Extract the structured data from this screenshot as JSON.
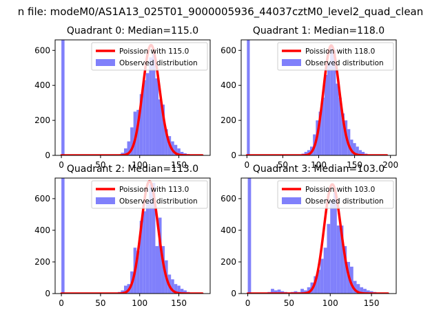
{
  "figure": {
    "suptitle": "n file: modeM0/AS1A13_025T01_9000005936_44037cztM0_level2_quad_clean"
  },
  "colors": {
    "hist": "#8080fb",
    "poisson": "#ff0000",
    "axis": "#000000",
    "background": "#ffffff"
  },
  "chart_data": [
    {
      "type": "bar",
      "title": "Quadrant 0: Median=115.0",
      "xlim": [
        -8,
        190
      ],
      "ylim": [
        0,
        660
      ],
      "xticks": [
        0,
        50,
        100,
        150
      ],
      "yticks": [
        0,
        200,
        400,
        600
      ],
      "grid": false,
      "legend_position": "top-right",
      "series": [
        {
          "name": "Observed distribution",
          "kind": "histogram",
          "bin_width": 4,
          "bins": [
            [
              0,
              660
            ],
            [
              72,
              5
            ],
            [
              76,
              15
            ],
            [
              80,
              40
            ],
            [
              84,
              80
            ],
            [
              88,
              160
            ],
            [
              92,
              250
            ],
            [
              96,
              260
            ],
            [
              100,
              350
            ],
            [
              104,
              430
            ],
            [
              108,
              470
            ],
            [
              112,
              560
            ],
            [
              116,
              580
            ],
            [
              120,
              440
            ],
            [
              124,
              320
            ],
            [
              128,
              290
            ],
            [
              132,
              150
            ],
            [
              136,
              110
            ],
            [
              140,
              80
            ],
            [
              144,
              60
            ],
            [
              148,
              40
            ],
            [
              152,
              20
            ],
            [
              156,
              12
            ],
            [
              160,
              8
            ],
            [
              164,
              4
            ],
            [
              168,
              2
            ],
            [
              172,
              1
            ]
          ]
        },
        {
          "name": "Poission with 115.0",
          "kind": "line",
          "mean": 115.0,
          "peak": 630,
          "x_range": [
            0,
            180
          ]
        }
      ]
    },
    {
      "type": "bar",
      "title": "Quadrant 1: Median=118.0",
      "xlim": [
        -8,
        208
      ],
      "ylim": [
        0,
        660
      ],
      "xticks": [
        0,
        50,
        100,
        150,
        200
      ],
      "yticks": [
        0,
        200,
        400,
        600
      ],
      "grid": false,
      "legend_position": "top-right",
      "series": [
        {
          "name": "Observed distribution",
          "kind": "histogram",
          "bin_width": 4,
          "bins": [
            [
              0,
              660
            ],
            [
              76,
              10
            ],
            [
              80,
              20
            ],
            [
              84,
              30
            ],
            [
              88,
              50
            ],
            [
              92,
              120
            ],
            [
              96,
              200
            ],
            [
              100,
              250
            ],
            [
              104,
              330
            ],
            [
              108,
              460
            ],
            [
              112,
              530
            ],
            [
              116,
              620
            ],
            [
              120,
              600
            ],
            [
              124,
              410
            ],
            [
              128,
              330
            ],
            [
              132,
              240
            ],
            [
              136,
              200
            ],
            [
              140,
              150
            ],
            [
              144,
              90
            ],
            [
              148,
              70
            ],
            [
              152,
              50
            ],
            [
              156,
              30
            ],
            [
              160,
              20
            ],
            [
              164,
              10
            ],
            [
              168,
              6
            ],
            [
              172,
              3
            ],
            [
              176,
              2
            ]
          ]
        },
        {
          "name": "Poission with 118.0",
          "kind": "line",
          "mean": 118.0,
          "peak": 628,
          "x_range": [
            0,
            195
          ]
        }
      ]
    },
    {
      "type": "bar",
      "title": "Quadrant 2: Median=113.0",
      "xlim": [
        -8,
        190
      ],
      "ylim": [
        0,
        730
      ],
      "xticks": [
        0,
        50,
        100,
        150
      ],
      "yticks": [
        0,
        200,
        400,
        600
      ],
      "grid": false,
      "legend_position": "top-right",
      "series": [
        {
          "name": "Observed distribution",
          "kind": "histogram",
          "bin_width": 4,
          "bins": [
            [
              0,
              730
            ],
            [
              72,
              10
            ],
            [
              76,
              20
            ],
            [
              80,
              50
            ],
            [
              84,
              60
            ],
            [
              88,
              140
            ],
            [
              92,
              290
            ],
            [
              96,
              270
            ],
            [
              100,
              460
            ],
            [
              104,
              520
            ],
            [
              108,
              580
            ],
            [
              112,
              690
            ],
            [
              116,
              700
            ],
            [
              120,
              300
            ],
            [
              124,
              480
            ],
            [
              128,
              300
            ],
            [
              132,
              210
            ],
            [
              136,
              120
            ],
            [
              140,
              90
            ],
            [
              144,
              60
            ],
            [
              148,
              50
            ],
            [
              152,
              30
            ],
            [
              156,
              20
            ],
            [
              160,
              10
            ],
            [
              164,
              5
            ],
            [
              168,
              3
            ],
            [
              172,
              1
            ]
          ]
        },
        {
          "name": "Poission with 113.0",
          "kind": "line",
          "mean": 113.0,
          "peak": 710,
          "x_range": [
            0,
            180
          ]
        }
      ]
    },
    {
      "type": "bar",
      "title": "Quadrant 3: Median=103.0",
      "xlim": [
        -8,
        180
      ],
      "ylim": [
        0,
        730
      ],
      "xticks": [
        0,
        50,
        100,
        150
      ],
      "yticks": [
        0,
        200,
        400,
        600
      ],
      "grid": false,
      "legend_position": "top-right",
      "series": [
        {
          "name": "Observed distribution",
          "kind": "histogram",
          "bin_width": 4,
          "bins": [
            [
              0,
              730
            ],
            [
              24,
              10
            ],
            [
              28,
              30
            ],
            [
              32,
              20
            ],
            [
              36,
              25
            ],
            [
              40,
              15
            ],
            [
              44,
              10
            ],
            [
              48,
              5
            ],
            [
              52,
              10
            ],
            [
              56,
              15
            ],
            [
              60,
              10
            ],
            [
              64,
              30
            ],
            [
              68,
              20
            ],
            [
              72,
              40
            ],
            [
              76,
              70
            ],
            [
              80,
              110
            ],
            [
              84,
              150
            ],
            [
              88,
              220
            ],
            [
              92,
              290
            ],
            [
              96,
              440
            ],
            [
              100,
              590
            ],
            [
              104,
              640
            ],
            [
              108,
              430
            ],
            [
              112,
              430
            ],
            [
              116,
              300
            ],
            [
              120,
              200
            ],
            [
              124,
              170
            ],
            [
              128,
              80
            ],
            [
              132,
              60
            ],
            [
              136,
              40
            ],
            [
              140,
              30
            ],
            [
              144,
              20
            ],
            [
              148,
              15
            ],
            [
              152,
              10
            ],
            [
              156,
              6
            ],
            [
              160,
              3
            ]
          ]
        },
        {
          "name": "Poission with 103.0",
          "kind": "line",
          "mean": 103.0,
          "peak": 690,
          "x_range": [
            0,
            170
          ]
        }
      ]
    }
  ]
}
